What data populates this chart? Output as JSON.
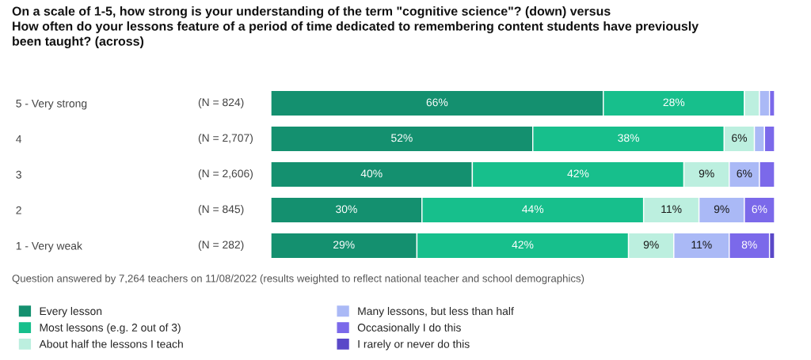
{
  "chart_data": {
    "type": "bar",
    "orientation": "horizontal",
    "stacked": true,
    "title": "On a scale of 1-5, how strong is your understanding of the term \"cognitive science\"? (down) versus\nHow often do your lessons feature of a period of time dedicated to remembering content students have previously\nbeen taught? (across)",
    "categories": [
      "5 - Very strong",
      "4",
      "3",
      "2",
      "1 - Very weak"
    ],
    "y2_categories": [
      "(N = 824)",
      "(N = 2,707)",
      "(N = 2,606)",
      "(N = 845)",
      "(N = 282)"
    ],
    "xlim": [
      0,
      100
    ],
    "tick_labels": "y",
    "legend": "bottom",
    "series": [
      {
        "name": "Every lesson",
        "color": "#14906f",
        "values": [
          66,
          52,
          40,
          30,
          29
        ],
        "value_labels": [
          "66%",
          "52%",
          "40%",
          "30%",
          "29%"
        ]
      },
      {
        "name": "Most lessons (e.g. 2 out of 3)",
        "color": "#17bf8c",
        "values": [
          28,
          38,
          42,
          44,
          42
        ],
        "value_labels": [
          "28%",
          "38%",
          "42%",
          "44%",
          "42%"
        ]
      },
      {
        "name": "About half the lessons I teach",
        "color": "#bcefdf",
        "values": [
          3,
          6,
          9,
          11,
          9
        ],
        "value_labels": [
          null,
          "6%",
          "9%",
          "11%",
          "9%"
        ]
      },
      {
        "name": "Many lessons, but less than half",
        "color": "#aab9f6",
        "values": [
          2,
          2,
          6,
          9,
          11
        ],
        "value_labels": [
          null,
          null,
          "6%",
          "9%",
          "11%"
        ]
      },
      {
        "name": "Occasionally I do this",
        "color": "#7b69ea",
        "values": [
          1,
          2,
          3,
          6,
          8
        ],
        "value_labels": [
          null,
          null,
          null,
          "6%",
          "8%"
        ]
      },
      {
        "name": "I rarely or never do this",
        "color": "#5a48c8",
        "values": [
          null,
          null,
          null,
          null,
          1
        ],
        "value_labels": [
          null,
          null,
          null,
          null,
          null
        ]
      }
    ],
    "annotations": [
      "Question answered by 7,264 teachers on 11/08/2022 (results weighted to reflect national teacher and school demographics)"
    ]
  }
}
